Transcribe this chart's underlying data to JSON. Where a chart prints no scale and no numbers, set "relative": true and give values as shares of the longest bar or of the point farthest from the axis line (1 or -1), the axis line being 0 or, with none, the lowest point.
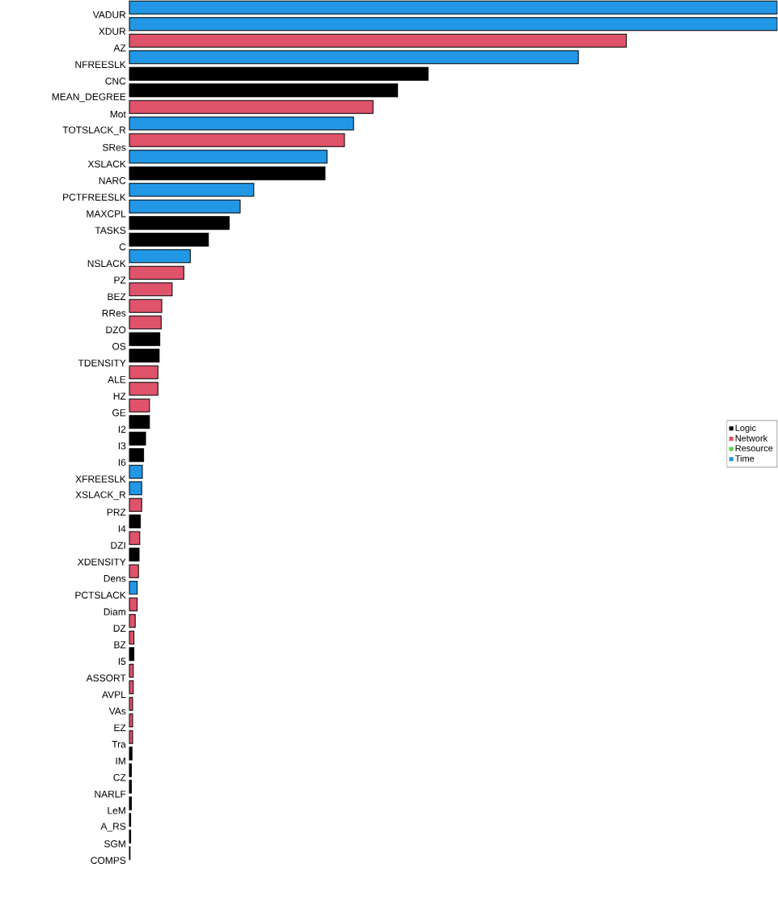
{
  "chart_data": {
    "type": "bar",
    "orientation": "horizontal",
    "relative": true,
    "legend": "right",
    "categories": [
      "VADUR",
      "XDUR",
      "AZ",
      "NFREESLK",
      "CNC",
      "MEAN_DEGREE",
      "Mot",
      "TOTSLACK_R",
      "SRes",
      "XSLACK",
      "NARC",
      "PCTFREESLK",
      "MAXCPL",
      "TASKS",
      "C",
      "NSLACK",
      "PZ",
      "BEZ",
      "RRes",
      "DZO",
      "OS",
      "TDENSITY",
      "ALE",
      "HZ",
      "GE",
      "I2",
      "I3",
      "I6",
      "XFREESLK",
      "XSLACK_R",
      "PRZ",
      "I4",
      "DZI",
      "XDENSITY",
      "Dens",
      "PCTSLACK",
      "Diam",
      "DZ",
      "BZ",
      "I5",
      "ASSORT",
      "AVPL",
      "VAs",
      "EZ",
      "Tra",
      "IM",
      "CZ",
      "NARLF",
      "LeM",
      "A_RS",
      "SGM",
      "COMPS"
    ],
    "series": [
      {
        "name": "Logic",
        "color": "#000000",
        "values": [
          null,
          null,
          null,
          null,
          0.461,
          0.414,
          null,
          null,
          null,
          null,
          0.302,
          null,
          null,
          0.154,
          0.122,
          null,
          null,
          null,
          null,
          null,
          0.047,
          0.046,
          null,
          null,
          null,
          0.031,
          0.025,
          0.022,
          null,
          null,
          null,
          0.017,
          null,
          0.015,
          null,
          null,
          null,
          null,
          null,
          0.007,
          null,
          null,
          null,
          null,
          null,
          0.004,
          0.003,
          0.003,
          0.003,
          0.002,
          0.002,
          0.001
        ]
      },
      {
        "name": "Network",
        "color": "#df536b",
        "values": [
          null,
          null,
          0.767,
          null,
          null,
          null,
          0.376,
          null,
          0.332,
          null,
          null,
          null,
          null,
          null,
          null,
          null,
          0.084,
          0.066,
          0.05,
          0.049,
          null,
          null,
          0.044,
          0.044,
          0.031,
          null,
          null,
          null,
          null,
          null,
          0.019,
          null,
          0.016,
          null,
          0.014,
          null,
          0.012,
          0.009,
          0.007,
          null,
          0.006,
          0.006,
          0.005,
          0.005,
          0.005,
          null,
          null,
          null,
          null,
          null,
          null,
          null
        ]
      },
      {
        "name": "Resource",
        "color": "#61d04f",
        "values": [
          null,
          null,
          null,
          null,
          null,
          null,
          null,
          null,
          null,
          null,
          null,
          null,
          null,
          null,
          null,
          null,
          null,
          null,
          null,
          null,
          null,
          null,
          null,
          null,
          null,
          null,
          null,
          null,
          null,
          null,
          null,
          null,
          null,
          null,
          null,
          null,
          null,
          null,
          null,
          null,
          null,
          null,
          null,
          null,
          null,
          null,
          null,
          null,
          null,
          null,
          null,
          null
        ]
      },
      {
        "name": "Time",
        "color": "#2297e6",
        "values": [
          1,
          1,
          null,
          0.693,
          null,
          null,
          null,
          0.346,
          null,
          0.305,
          null,
          0.192,
          0.171,
          null,
          null,
          0.094,
          null,
          null,
          null,
          null,
          null,
          null,
          null,
          null,
          null,
          null,
          null,
          null,
          0.02,
          0.019,
          null,
          null,
          null,
          null,
          null,
          0.012,
          null,
          null,
          null,
          null,
          null,
          null,
          null,
          null,
          null,
          null,
          null,
          null,
          null,
          null,
          null,
          null
        ]
      }
    ]
  }
}
